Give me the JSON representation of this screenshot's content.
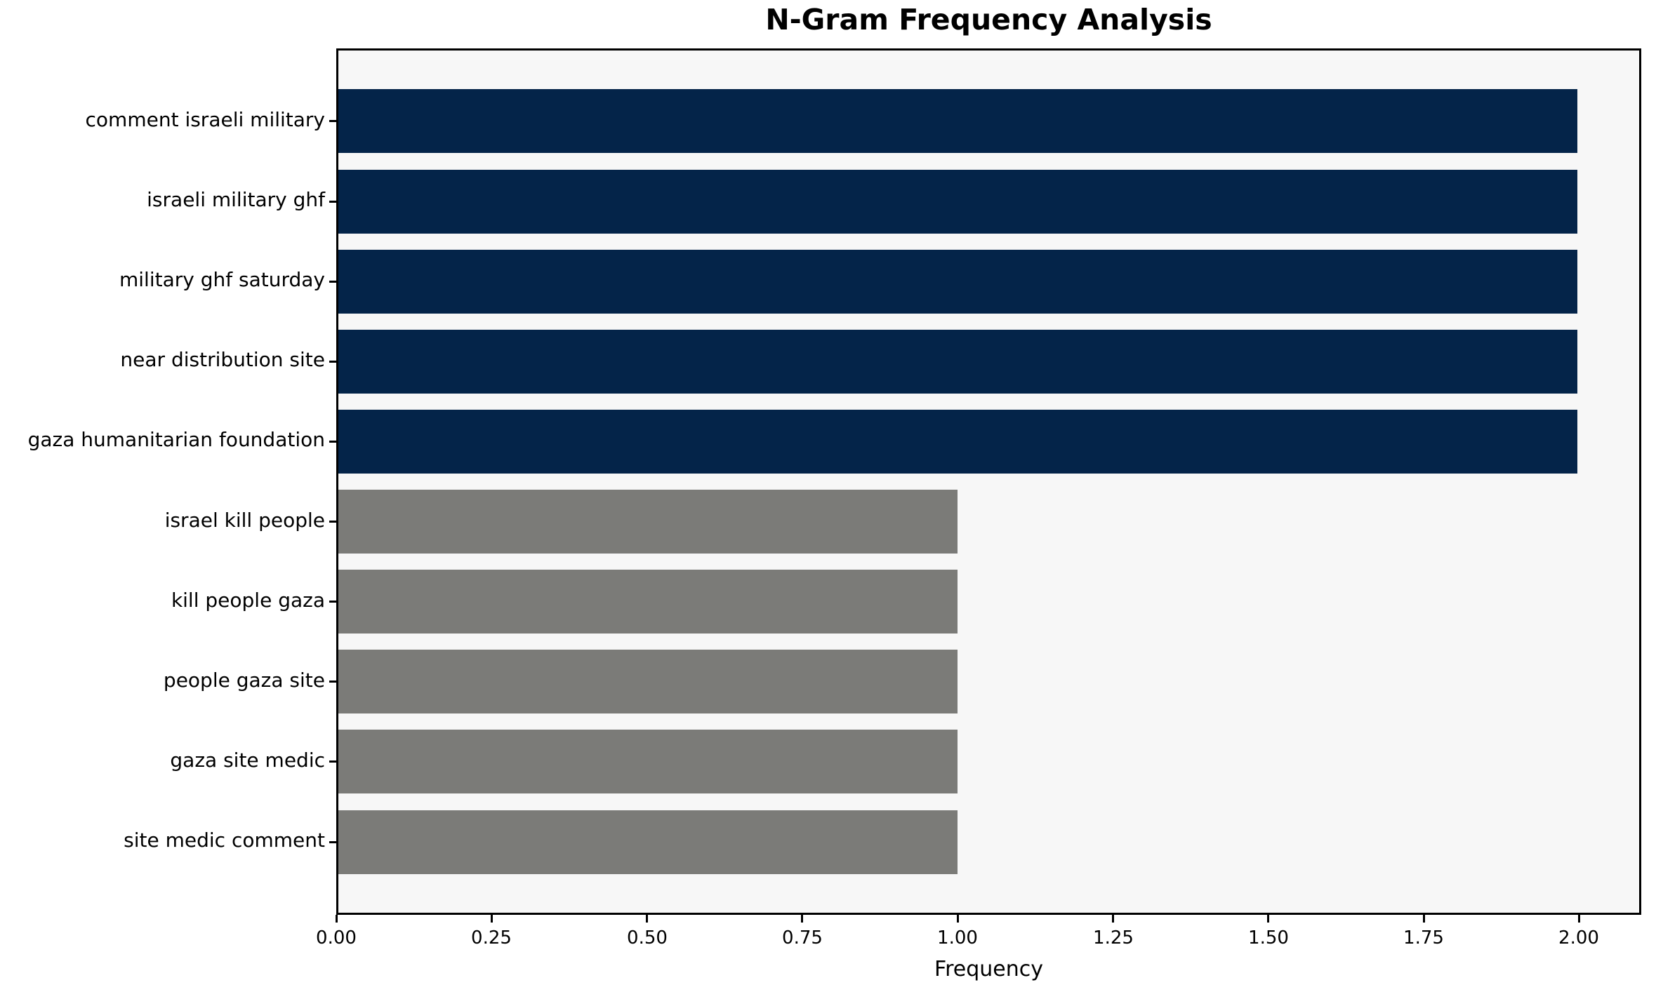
{
  "title": "N-Gram Frequency Analysis",
  "chart_data": {
    "type": "bar",
    "orientation": "horizontal",
    "title": "N-Gram Frequency Analysis",
    "xlabel": "Frequency",
    "ylabel": "",
    "categories": [
      "comment israeli military",
      "israeli military ghf",
      "military ghf saturday",
      "near distribution site",
      "gaza humanitarian foundation",
      "israel kill people",
      "kill people gaza",
      "people gaza site",
      "gaza site medic",
      "site medic comment"
    ],
    "values": [
      2,
      2,
      2,
      2,
      2,
      1,
      1,
      1,
      1,
      1
    ],
    "bar_colors": [
      "#042449",
      "#042449",
      "#042449",
      "#042449",
      "#042449",
      "#7b7b78",
      "#7b7b78",
      "#7b7b78",
      "#7b7b78",
      "#7b7b78"
    ],
    "xlim": [
      0,
      2.1
    ],
    "xticks": [
      0,
      0.25,
      0.5,
      0.75,
      1.0,
      1.25,
      1.5,
      1.75,
      2.0
    ],
    "xtick_labels": [
      "0.00",
      "0.25",
      "0.50",
      "0.75",
      "1.00",
      "1.25",
      "1.50",
      "1.75",
      "2.00"
    ],
    "grid": false,
    "legend": "none",
    "plot_background": "#f7f7f7",
    "figure_background": "#ffffff",
    "bar_height_fraction": 0.8
  }
}
